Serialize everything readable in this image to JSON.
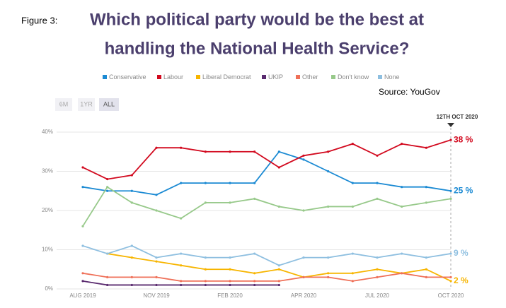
{
  "figure_label": "Figure 3:",
  "source": "Source: YouGov",
  "range_buttons": [
    "6M",
    "1YR",
    "ALL"
  ],
  "marker_label": "12TH OCT 2020",
  "chart_data": {
    "type": "line",
    "title": [
      "Which political party would be the best at",
      "handling the National Health Service?"
    ],
    "categories": [
      "AUG 2019",
      null,
      null,
      "NOV 2019",
      null,
      null,
      "FEB 2020",
      null,
      null,
      "APR 2020",
      null,
      null,
      "JUL 2020",
      null,
      null,
      "OCT 2020"
    ],
    "ylim": [
      0,
      40
    ],
    "yticks": [
      {
        "value": 0,
        "label": "0%"
      },
      {
        "value": 10,
        "label": "10%"
      },
      {
        "value": 20,
        "label": "20%"
      },
      {
        "value": 30,
        "label": "30%"
      },
      {
        "value": 40,
        "label": "40%"
      }
    ],
    "grid": true,
    "series": [
      {
        "name": "Conservative",
        "color": "#1b8ad3",
        "values": [
          26,
          25,
          25,
          24,
          27,
          27,
          27,
          27,
          35,
          33,
          30,
          27,
          27,
          26,
          26,
          25
        ],
        "value_labels": [
          null,
          null,
          null,
          null,
          null,
          null,
          null,
          null,
          null,
          null,
          null,
          null,
          null,
          null,
          null,
          "25 %"
        ]
      },
      {
        "name": "Labour",
        "color": "#d2091e",
        "values": [
          31,
          28,
          29,
          36,
          36,
          35,
          35,
          35,
          31,
          34,
          35,
          37,
          34,
          37,
          36,
          38
        ],
        "value_labels": [
          null,
          null,
          null,
          null,
          null,
          null,
          null,
          null,
          null,
          null,
          null,
          null,
          null,
          null,
          null,
          "38 %"
        ]
      },
      {
        "name": "Liberal Democrat",
        "color": "#f7b500",
        "values": [
          null,
          9,
          8,
          7,
          6,
          5,
          5,
          4,
          5,
          3,
          4,
          4,
          5,
          4,
          5,
          2
        ],
        "value_labels": [
          null,
          null,
          null,
          null,
          null,
          null,
          null,
          null,
          null,
          null,
          null,
          null,
          null,
          null,
          null,
          "2 %"
        ]
      },
      {
        "name": "UKIP",
        "color": "#5a2b6f",
        "values": [
          2,
          1,
          1,
          1,
          1,
          1,
          1,
          1,
          1,
          null,
          null,
          null,
          null,
          null,
          null,
          null
        ]
      },
      {
        "name": "Other",
        "color": "#ef7058",
        "values": [
          4,
          3,
          3,
          3,
          2,
          2,
          2,
          2,
          2,
          3,
          3,
          2,
          3,
          4,
          3,
          3
        ]
      },
      {
        "name": "Don't know",
        "color": "#97c98a",
        "values": [
          16,
          26,
          22,
          20,
          18,
          22,
          22,
          23,
          21,
          20,
          21,
          21,
          23,
          21,
          22,
          23
        ]
      },
      {
        "name": "None",
        "color": "#8ebfe0",
        "values": [
          11,
          9,
          11,
          8,
          9,
          8,
          8,
          9,
          6,
          8,
          8,
          9,
          8,
          9,
          8,
          9
        ],
        "value_labels": [
          null,
          null,
          null,
          null,
          null,
          null,
          null,
          null,
          null,
          null,
          null,
          null,
          null,
          null,
          null,
          "9 %"
        ]
      }
    ]
  }
}
